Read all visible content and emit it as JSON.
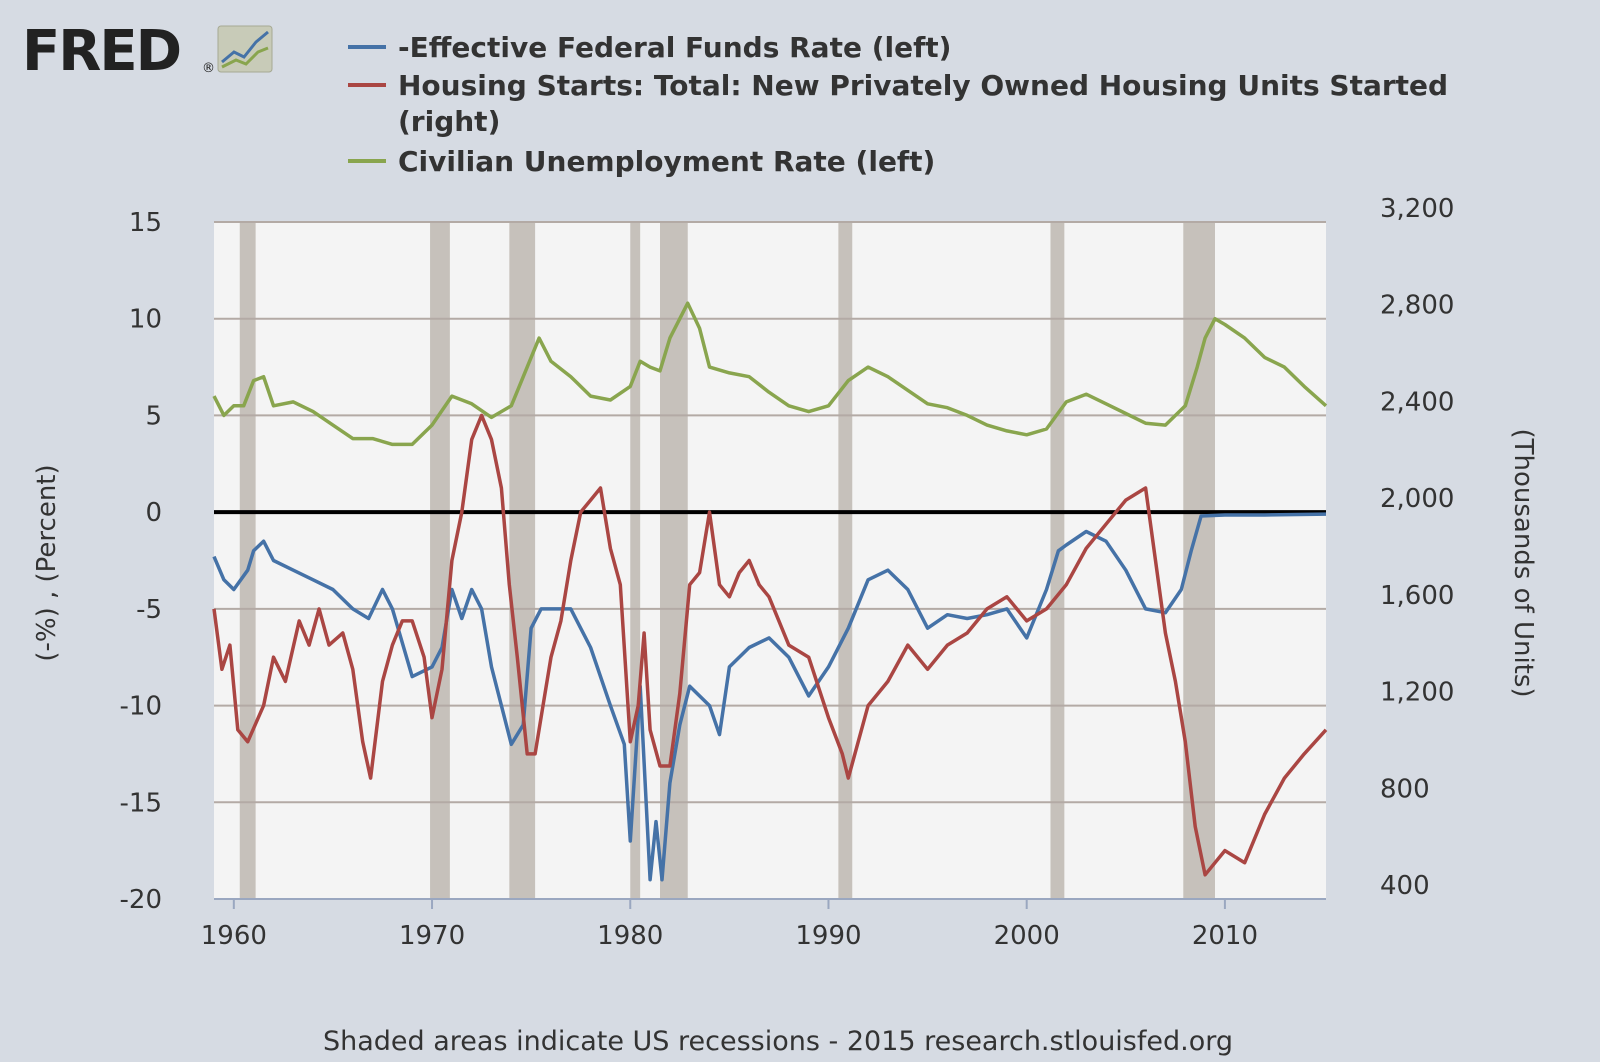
{
  "logo": {
    "text": "FRED",
    "reg": "®"
  },
  "legend": [
    {
      "label": "-Effective Federal Funds Rate (left)",
      "color": "#4572a7"
    },
    {
      "label": "Housing Starts: Total: New Privately Owned Housing Units Started",
      "label2": "(right)",
      "color": "#aa4643"
    },
    {
      "label": "Civilian Unemployment Rate (left)",
      "color": "#89a54e"
    }
  ],
  "footer": "Shaded areas indicate US recessions - 2015 research.stlouisfed.org",
  "chart_data": {
    "type": "line",
    "x_range": [
      1959,
      2015.1
    ],
    "x_ticks": [
      1960,
      1970,
      1980,
      1990,
      2000,
      2010
    ],
    "left_axis": {
      "title": "(-%) , (Percent)",
      "range": [
        -20,
        15
      ],
      "ticks": [
        15,
        10,
        5,
        0,
        -5,
        -10,
        -15,
        -20
      ]
    },
    "right_axis": {
      "title": "(Thousands of Units)",
      "range": [
        400,
        3200
      ],
      "ticks": [
        "3,200",
        "2,800",
        "2,400",
        "2,000",
        "1,600",
        "1,200",
        "800",
        "400"
      ],
      "tick_values": [
        3200,
        2800,
        2400,
        2000,
        1600,
        1200,
        800,
        400
      ]
    },
    "recessions": [
      [
        1960.3,
        1961.1
      ],
      [
        1969.9,
        1970.9
      ],
      [
        1973.9,
        1975.2
      ],
      [
        1980.0,
        1980.5
      ],
      [
        1981.5,
        1982.9
      ],
      [
        1990.5,
        1991.2
      ],
      [
        2001.2,
        2001.9
      ],
      [
        2007.9,
        2009.5
      ]
    ],
    "zero_line": 0,
    "series": [
      {
        "name": "-Effective Federal Funds Rate (left)",
        "axis": "left",
        "color": "#4572a7",
        "points": [
          [
            1959,
            -2.3
          ],
          [
            1959.5,
            -3.5
          ],
          [
            1960,
            -4
          ],
          [
            1960.7,
            -3
          ],
          [
            1961,
            -2
          ],
          [
            1961.5,
            -1.5
          ],
          [
            1962,
            -2.5
          ],
          [
            1963,
            -3
          ],
          [
            1964,
            -3.5
          ],
          [
            1965,
            -4
          ],
          [
            1966,
            -5
          ],
          [
            1966.8,
            -5.5
          ],
          [
            1967.5,
            -4
          ],
          [
            1968,
            -5
          ],
          [
            1969,
            -8.5
          ],
          [
            1970,
            -8
          ],
          [
            1970.5,
            -7
          ],
          [
            1971,
            -4
          ],
          [
            1971.5,
            -5.5
          ],
          [
            1972,
            -4
          ],
          [
            1972.5,
            -5
          ],
          [
            1973,
            -8
          ],
          [
            1973.5,
            -10
          ],
          [
            1974,
            -12
          ],
          [
            1974.6,
            -11
          ],
          [
            1975,
            -6
          ],
          [
            1975.5,
            -5
          ],
          [
            1976,
            -5
          ],
          [
            1977,
            -5
          ],
          [
            1978,
            -7
          ],
          [
            1979,
            -10
          ],
          [
            1979.7,
            -12
          ],
          [
            1980,
            -17
          ],
          [
            1980.5,
            -9
          ],
          [
            1981,
            -19
          ],
          [
            1981.3,
            -16
          ],
          [
            1981.6,
            -19
          ],
          [
            1982,
            -14
          ],
          [
            1982.5,
            -11
          ],
          [
            1983,
            -9
          ],
          [
            1984,
            -10
          ],
          [
            1984.5,
            -11.5
          ],
          [
            1985,
            -8
          ],
          [
            1986,
            -7
          ],
          [
            1987,
            -6.5
          ],
          [
            1988,
            -7.5
          ],
          [
            1989,
            -9.5
          ],
          [
            1990,
            -8
          ],
          [
            1991,
            -6
          ],
          [
            1992,
            -3.5
          ],
          [
            1993,
            -3
          ],
          [
            1994,
            -4
          ],
          [
            1995,
            -6
          ],
          [
            1996,
            -5.3
          ],
          [
            1997,
            -5.5
          ],
          [
            1998,
            -5.3
          ],
          [
            1999,
            -5
          ],
          [
            2000,
            -6.5
          ],
          [
            2001,
            -4
          ],
          [
            2001.6,
            -2
          ],
          [
            2002,
            -1.7
          ],
          [
            2003,
            -1
          ],
          [
            2004,
            -1.5
          ],
          [
            2005,
            -3
          ],
          [
            2006,
            -5
          ],
          [
            2007,
            -5.2
          ],
          [
            2007.8,
            -4
          ],
          [
            2008.3,
            -2
          ],
          [
            2008.8,
            -0.2
          ],
          [
            2010,
            -0.15
          ],
          [
            2012,
            -0.15
          ],
          [
            2015.1,
            -0.1
          ]
        ]
      },
      {
        "name": "Housing Starts: Total: New Privately Owned Housing Units Started (right)",
        "axis": "right",
        "color": "#aa4643",
        "points": [
          [
            1959,
            1600
          ],
          [
            1959.4,
            1350
          ],
          [
            1959.8,
            1450
          ],
          [
            1960.2,
            1100
          ],
          [
            1960.7,
            1050
          ],
          [
            1961.5,
            1200
          ],
          [
            1962,
            1400
          ],
          [
            1962.6,
            1300
          ],
          [
            1963.3,
            1550
          ],
          [
            1963.8,
            1450
          ],
          [
            1964.3,
            1600
          ],
          [
            1964.8,
            1450
          ],
          [
            1965.5,
            1500
          ],
          [
            1966,
            1350
          ],
          [
            1966.5,
            1050
          ],
          [
            1966.9,
            900
          ],
          [
            1967.5,
            1300
          ],
          [
            1968,
            1450
          ],
          [
            1968.5,
            1550
          ],
          [
            1969,
            1550
          ],
          [
            1969.6,
            1400
          ],
          [
            1970,
            1150
          ],
          [
            1970.5,
            1350
          ],
          [
            1971,
            1800
          ],
          [
            1971.5,
            2000
          ],
          [
            1972,
            2300
          ],
          [
            1972.5,
            2400
          ],
          [
            1973,
            2300
          ],
          [
            1973.5,
            2100
          ],
          [
            1973.9,
            1700
          ],
          [
            1974.3,
            1400
          ],
          [
            1974.8,
            1000
          ],
          [
            1975.2,
            1000
          ],
          [
            1975.7,
            1250
          ],
          [
            1976,
            1400
          ],
          [
            1976.5,
            1550
          ],
          [
            1977,
            1800
          ],
          [
            1977.5,
            2000
          ],
          [
            1978,
            2050
          ],
          [
            1978.5,
            2100
          ],
          [
            1979,
            1850
          ],
          [
            1979.5,
            1700
          ],
          [
            1980,
            1050
          ],
          [
            1980.4,
            1200
          ],
          [
            1980.7,
            1500
          ],
          [
            1981,
            1100
          ],
          [
            1981.5,
            950
          ],
          [
            1982,
            950
          ],
          [
            1982.5,
            1250
          ],
          [
            1983,
            1700
          ],
          [
            1983.5,
            1750
          ],
          [
            1984,
            2000
          ],
          [
            1984.5,
            1700
          ],
          [
            1985,
            1650
          ],
          [
            1985.5,
            1750
          ],
          [
            1986,
            1800
          ],
          [
            1986.5,
            1700
          ],
          [
            1987,
            1650
          ],
          [
            1987.5,
            1550
          ],
          [
            1988,
            1450
          ],
          [
            1989,
            1400
          ],
          [
            1990,
            1150
          ],
          [
            1990.7,
            1000
          ],
          [
            1991,
            900
          ],
          [
            1991.5,
            1050
          ],
          [
            1992,
            1200
          ],
          [
            1993,
            1300
          ],
          [
            1994,
            1450
          ],
          [
            1995,
            1350
          ],
          [
            1996,
            1450
          ],
          [
            1997,
            1500
          ],
          [
            1998,
            1600
          ],
          [
            1999,
            1650
          ],
          [
            2000,
            1550
          ],
          [
            2001,
            1600
          ],
          [
            2002,
            1700
          ],
          [
            2003,
            1850
          ],
          [
            2004,
            1950
          ],
          [
            2005,
            2050
          ],
          [
            2006,
            2100
          ],
          [
            2006.5,
            1800
          ],
          [
            2007,
            1500
          ],
          [
            2007.5,
            1300
          ],
          [
            2008,
            1050
          ],
          [
            2008.5,
            700
          ],
          [
            2009,
            500
          ],
          [
            2009.5,
            550
          ],
          [
            2010,
            600
          ],
          [
            2011,
            550
          ],
          [
            2012,
            750
          ],
          [
            2013,
            900
          ],
          [
            2014,
            1000
          ],
          [
            2015.1,
            1100
          ]
        ]
      },
      {
        "name": "Civilian Unemployment Rate (left)",
        "axis": "left",
        "color": "#89a54e",
        "points": [
          [
            1959,
            6
          ],
          [
            1959.5,
            5
          ],
          [
            1960,
            5.5
          ],
          [
            1960.5,
            5.5
          ],
          [
            1961,
            6.8
          ],
          [
            1961.5,
            7
          ],
          [
            1962,
            5.5
          ],
          [
            1963,
            5.7
          ],
          [
            1964,
            5.2
          ],
          [
            1965,
            4.5
          ],
          [
            1966,
            3.8
          ],
          [
            1967,
            3.8
          ],
          [
            1968,
            3.5
          ],
          [
            1969,
            3.5
          ],
          [
            1970,
            4.5
          ],
          [
            1971,
            6
          ],
          [
            1972,
            5.6
          ],
          [
            1973,
            4.9
          ],
          [
            1974,
            5.5
          ],
          [
            1974.8,
            7.5
          ],
          [
            1975.4,
            9
          ],
          [
            1976,
            7.8
          ],
          [
            1977,
            7
          ],
          [
            1978,
            6
          ],
          [
            1979,
            5.8
          ],
          [
            1980,
            6.5
          ],
          [
            1980.5,
            7.8
          ],
          [
            1981,
            7.5
          ],
          [
            1981.5,
            7.3
          ],
          [
            1982,
            9
          ],
          [
            1982.5,
            10
          ],
          [
            1982.9,
            10.8
          ],
          [
            1983.5,
            9.5
          ],
          [
            1984,
            7.5
          ],
          [
            1985,
            7.2
          ],
          [
            1986,
            7
          ],
          [
            1987,
            6.2
          ],
          [
            1988,
            5.5
          ],
          [
            1989,
            5.2
          ],
          [
            1990,
            5.5
          ],
          [
            1991,
            6.8
          ],
          [
            1992,
            7.5
          ],
          [
            1993,
            7
          ],
          [
            1994,
            6.3
          ],
          [
            1995,
            5.6
          ],
          [
            1996,
            5.4
          ],
          [
            1997,
            5
          ],
          [
            1998,
            4.5
          ],
          [
            1999,
            4.2
          ],
          [
            2000,
            4
          ],
          [
            2001,
            4.3
          ],
          [
            2002,
            5.7
          ],
          [
            2003,
            6.1
          ],
          [
            2004,
            5.6
          ],
          [
            2005,
            5.1
          ],
          [
            2006,
            4.6
          ],
          [
            2007,
            4.5
          ],
          [
            2008,
            5.5
          ],
          [
            2008.6,
            7.5
          ],
          [
            2009,
            9
          ],
          [
            2009.5,
            10
          ],
          [
            2010,
            9.7
          ],
          [
            2011,
            9
          ],
          [
            2012,
            8
          ],
          [
            2013,
            7.5
          ],
          [
            2014,
            6.5
          ],
          [
            2015.1,
            5.5
          ]
        ]
      }
    ]
  }
}
